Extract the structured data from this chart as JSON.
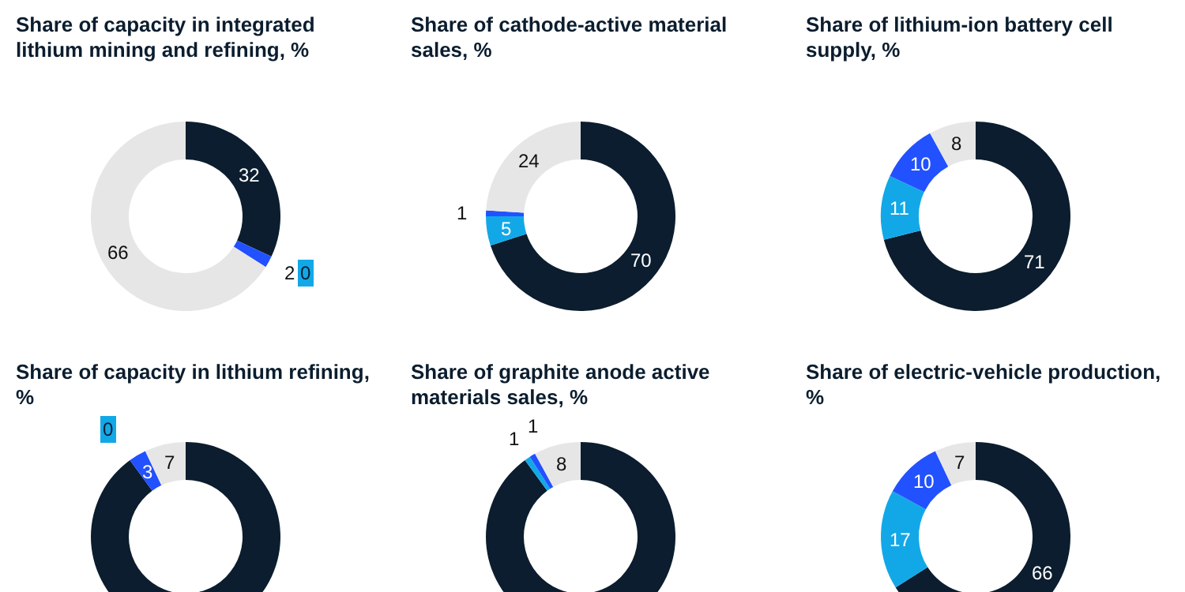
{
  "chart_data": [
    {
      "type": "donut",
      "title": "Share of capacity in integrated lithium mining and refining, %",
      "categories": [
        null,
        null,
        null,
        null
      ],
      "values": [
        32,
        0,
        2,
        66
      ],
      "colors": [
        "#0b1d2e",
        "#12a8e8",
        "#2251ff",
        "#e6e6e6"
      ],
      "value_labels": [
        "32",
        "0",
        "2",
        "66"
      ]
    },
    {
      "type": "donut",
      "title": "Share of cathode-active material sales, %",
      "categories": [
        null,
        null,
        null,
        null
      ],
      "values": [
        70,
        5,
        1,
        24
      ],
      "colors": [
        "#0b1d2e",
        "#12a8e8",
        "#2251ff",
        "#e6e6e6"
      ],
      "value_labels": [
        "70",
        "5",
        "1",
        "24"
      ]
    },
    {
      "type": "donut",
      "title": "Share of lithium-ion battery cell supply, %",
      "categories": [
        null,
        null,
        null,
        null
      ],
      "values": [
        71,
        11,
        10,
        8
      ],
      "colors": [
        "#0b1d2e",
        "#12a8e8",
        "#2251ff",
        "#e6e6e6"
      ],
      "value_labels": [
        "71",
        "11",
        "10",
        "8"
      ]
    },
    {
      "type": "donut",
      "title": "Share of capacity in lithium refining, %",
      "categories": [
        null,
        null,
        null,
        null
      ],
      "values": [
        90,
        0,
        3,
        7
      ],
      "colors": [
        "#0b1d2e",
        "#12a8e8",
        "#2251ff",
        "#e6e6e6"
      ],
      "value_labels": [
        null,
        "0",
        "3",
        "7"
      ]
    },
    {
      "type": "donut",
      "title": "Share of graphite anode active materials sales, %",
      "categories": [
        null,
        null,
        null,
        null
      ],
      "values": [
        90,
        1,
        1,
        8
      ],
      "colors": [
        "#0b1d2e",
        "#12a8e8",
        "#2251ff",
        "#e6e6e6"
      ],
      "value_labels": [
        null,
        "1",
        "1",
        "8"
      ]
    },
    {
      "type": "donut",
      "title": "Share of electric-vehicle production, %",
      "categories": [
        null,
        null,
        null,
        null
      ],
      "values": [
        66,
        17,
        10,
        7
      ],
      "colors": [
        "#0b1d2e",
        "#12a8e8",
        "#2251ff",
        "#e6e6e6"
      ],
      "value_labels": [
        "66",
        "17",
        "10",
        "7"
      ]
    }
  ]
}
